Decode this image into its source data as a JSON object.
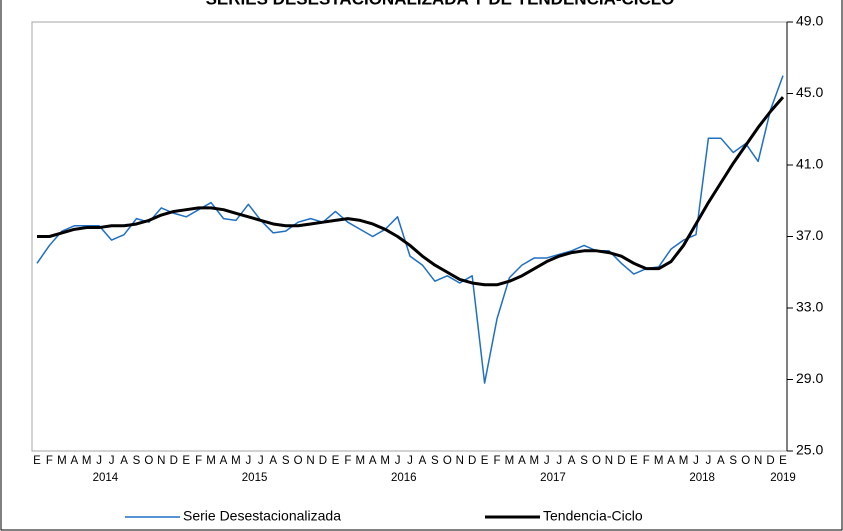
{
  "chart_data": {
    "type": "line",
    "title": "SERIES DESESTACIONALIZADA Y DE TENDENCIA-CICLO",
    "categories": [
      "E",
      "F",
      "M",
      "A",
      "M",
      "J",
      "J",
      "A",
      "S",
      "O",
      "N",
      "D",
      "E",
      "F",
      "M",
      "A",
      "M",
      "J",
      "J",
      "A",
      "S",
      "O",
      "N",
      "D",
      "E",
      "F",
      "M",
      "A",
      "M",
      "J",
      "J",
      "A",
      "S",
      "O",
      "N",
      "D",
      "E",
      "F",
      "M",
      "A",
      "M",
      "J",
      "J",
      "A",
      "S",
      "O",
      "N",
      "D",
      "E",
      "F",
      "M",
      "A",
      "M",
      "J",
      "J",
      "A",
      "S",
      "O",
      "N",
      "D",
      "E"
    ],
    "year_labels": [
      "2014",
      "2015",
      "2016",
      "2017",
      "2018",
      "2019"
    ],
    "series": [
      {
        "name": "Serie Desestacionalizada",
        "color": "#1f6fc5",
        "values": [
          35.5,
          36.5,
          37.3,
          37.6,
          37.6,
          37.6,
          36.8,
          37.1,
          38.0,
          37.8,
          38.6,
          38.3,
          38.1,
          38.5,
          38.9,
          38.0,
          37.9,
          38.8,
          37.9,
          37.2,
          37.3,
          37.8,
          38.0,
          37.8,
          38.4,
          37.8,
          37.4,
          37.0,
          37.4,
          38.1,
          35.9,
          35.4,
          34.5,
          34.8,
          34.4,
          34.8,
          28.8,
          32.4,
          34.7,
          35.4,
          35.8,
          35.8,
          36.0,
          36.2,
          36.5,
          36.2,
          36.2,
          35.5,
          34.9,
          35.2,
          35.3,
          36.3,
          36.8,
          37.1,
          42.5,
          42.5,
          41.7,
          42.2,
          41.2,
          44.1,
          46.0
        ]
      },
      {
        "name": "Tendencia-Ciclo",
        "color": "#000000",
        "values": [
          37.0,
          37.0,
          37.2,
          37.4,
          37.5,
          37.5,
          37.6,
          37.6,
          37.7,
          37.9,
          38.2,
          38.4,
          38.5,
          38.6,
          38.6,
          38.5,
          38.3,
          38.1,
          37.9,
          37.7,
          37.6,
          37.6,
          37.7,
          37.8,
          37.9,
          38.0,
          37.9,
          37.7,
          37.4,
          37.0,
          36.5,
          35.9,
          35.4,
          35.0,
          34.6,
          34.4,
          34.3,
          34.3,
          34.5,
          34.8,
          35.2,
          35.6,
          35.9,
          36.1,
          36.2,
          36.2,
          36.1,
          35.9,
          35.5,
          35.2,
          35.2,
          35.6,
          36.5,
          37.7,
          38.9,
          40.0,
          41.1,
          42.1,
          43.1,
          44.0,
          44.8
        ]
      }
    ],
    "ylim": [
      25,
      49
    ],
    "yticks": [
      {
        "value": 25,
        "label": "25.0"
      },
      {
        "value": 29,
        "label": "29.0"
      },
      {
        "value": 33,
        "label": "33.0"
      },
      {
        "value": 37,
        "label": "37.0"
      },
      {
        "value": 41,
        "label": "41.0"
      },
      {
        "value": 45,
        "label": "45.0"
      },
      {
        "value": 49,
        "label": "49.0"
      }
    ],
    "y_axis_side": "right"
  }
}
